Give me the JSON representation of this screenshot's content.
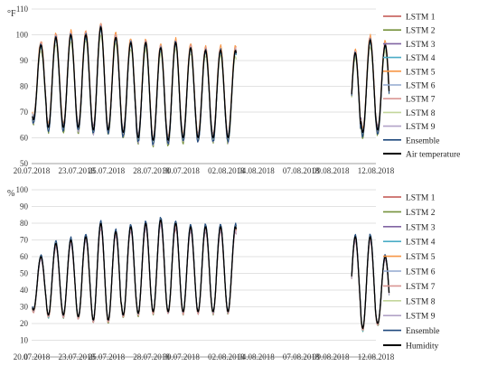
{
  "chart_data": [
    {
      "type": "line",
      "ylabel": "°F",
      "ylim": [
        50,
        110
      ],
      "yticks": [
        "50",
        "60",
        "70",
        "80",
        "90",
        "100",
        "110"
      ],
      "x_range": [
        "20.07.2018",
        "12.08.2018"
      ],
      "xticks": [
        "20.07.2018",
        "23.07.2018",
        "25.07.2018",
        "28.07.2018",
        "30.07.2018",
        "02.08.2018",
        "04.08.2018",
        "07.08.2018",
        "09.08.2018",
        "12.08.2018"
      ],
      "grid": "horizontal",
      "legend_position": "right",
      "data_gap": [
        "2018-08-02",
        "2018-08-10"
      ],
      "daily_peaks": [
        96,
        99,
        100,
        100,
        103,
        99,
        97,
        97,
        95,
        97,
        95,
        94,
        93,
        98,
        96
      ],
      "daily_troughs": [
        67,
        64,
        64,
        64,
        63,
        63,
        62,
        60,
        59,
        59,
        60,
        60,
        58,
        62,
        63
      ],
      "series": [
        {
          "name": "LSTM 1",
          "color": "#c0504d"
        },
        {
          "name": "LSTM 2",
          "color": "#76923c"
        },
        {
          "name": "LSTM 3",
          "color": "#8064a2"
        },
        {
          "name": "LSTM 4",
          "color": "#4bacc6"
        },
        {
          "name": "LSTM 5",
          "color": "#f79646"
        },
        {
          "name": "LSTM 6",
          "color": "#92a9cf"
        },
        {
          "name": "LSTM 7",
          "color": "#d99694"
        },
        {
          "name": "LSTM 8",
          "color": "#c3d69b"
        },
        {
          "name": "LSTM 9",
          "color": "#b2a2c7"
        },
        {
          "name": "Ensemble",
          "color": "#1f497d"
        },
        {
          "name": "Air temperature",
          "color": "#000000"
        }
      ]
    },
    {
      "type": "line",
      "ylabel": "%",
      "ylim": [
        0,
        100
      ],
      "yticks": [
        "0",
        "10",
        "20",
        "30",
        "40",
        "50",
        "60",
        "70",
        "80",
        "90",
        "100"
      ],
      "x_range": [
        "20.07.2018",
        "12.08.2018"
      ],
      "xticks": [
        "20.07.2018",
        "23.07.2018",
        "25.07.2018",
        "28.07.2018",
        "30.07.2018",
        "02.08.2018",
        "04.08.2018",
        "07.08.2018",
        "09.08.2018",
        "12.08.2018"
      ],
      "grid": "horizontal",
      "legend_position": "right",
      "data_gap": [
        "2018-08-02",
        "2018-08-10"
      ],
      "daily_peaks": [
        60,
        68,
        70,
        72,
        80,
        75,
        78,
        80,
        82,
        80,
        78,
        78,
        72,
        72,
        60
      ],
      "daily_troughs": [
        28,
        25,
        25,
        24,
        22,
        22,
        25,
        26,
        27,
        27,
        27,
        27,
        20,
        17,
        20
      ],
      "series": [
        {
          "name": "LSTM 1",
          "color": "#c0504d"
        },
        {
          "name": "LSTM 2",
          "color": "#76923c"
        },
        {
          "name": "LSTM 3",
          "color": "#8064a2"
        },
        {
          "name": "LSTM 4",
          "color": "#4bacc6"
        },
        {
          "name": "LSTM 5",
          "color": "#f79646"
        },
        {
          "name": "LSTM 6",
          "color": "#92a9cf"
        },
        {
          "name": "LSTM 7",
          "color": "#d99694"
        },
        {
          "name": "LSTM 8",
          "color": "#c3d69b"
        },
        {
          "name": "LSTM 9",
          "color": "#b2a2c7"
        },
        {
          "name": "Ensemble",
          "color": "#1f497d"
        },
        {
          "name": "Humidity",
          "color": "#000000"
        }
      ]
    }
  ]
}
